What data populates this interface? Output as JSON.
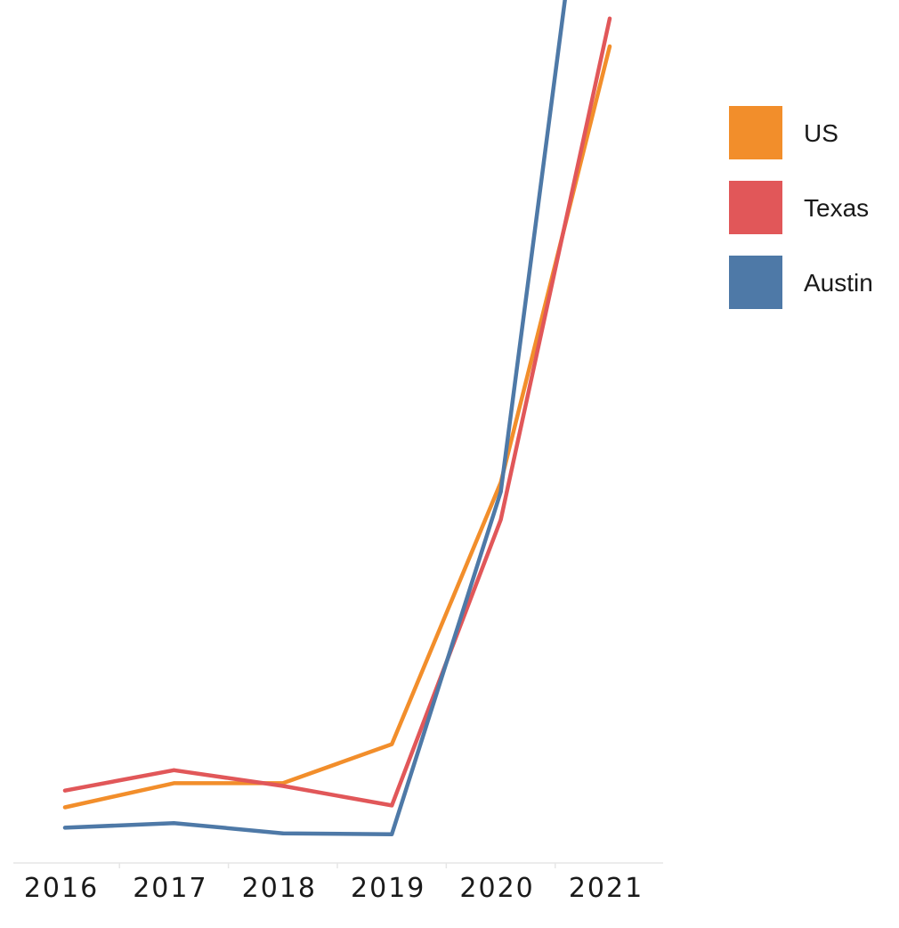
{
  "chart_data": {
    "type": "line",
    "x": [
      "2016",
      "2017",
      "2018",
      "2019",
      "2020",
      "2021"
    ],
    "series": [
      {
        "name": "US",
        "color": "#F28E2B",
        "values": [
          6.0,
          8.6,
          8.6,
          12.8,
          41.0,
          88.0
        ]
      },
      {
        "name": "Texas",
        "color": "#E15759",
        "values": [
          7.8,
          10.0,
          8.3,
          6.2,
          37.0,
          91.0
        ]
      },
      {
        "name": "Austin",
        "color": "#4E79A7",
        "values": [
          3.8,
          4.3,
          3.2,
          3.1,
          40.0,
          130.0
        ]
      }
    ],
    "ylim": [
      0,
      93
    ],
    "grid": false,
    "legend": "top-right"
  }
}
